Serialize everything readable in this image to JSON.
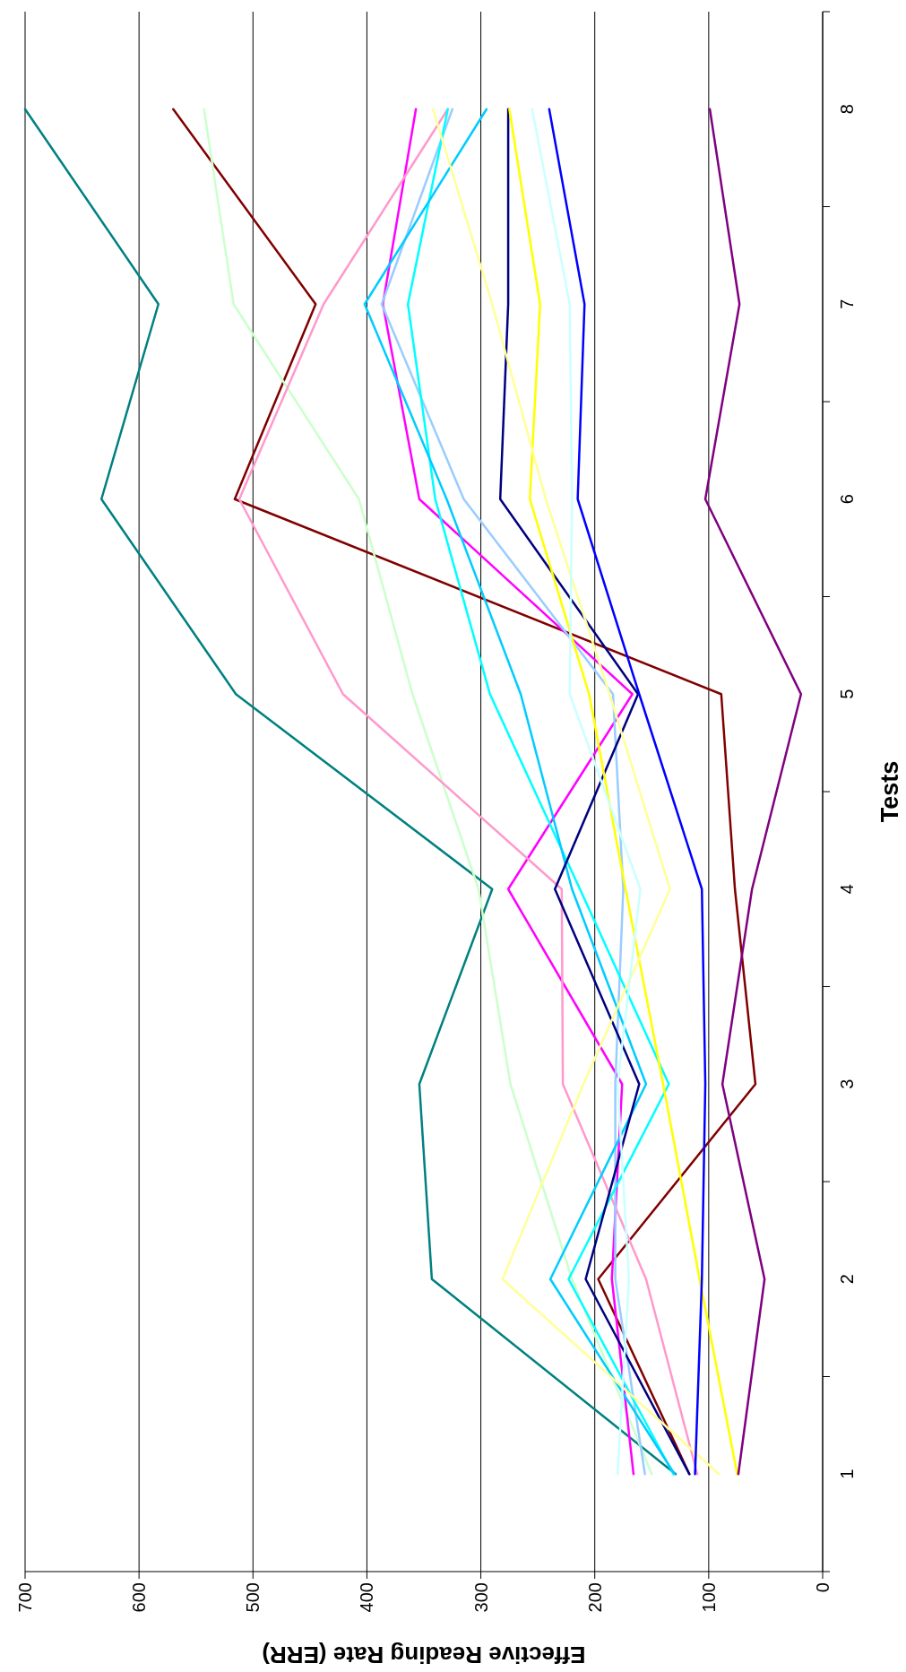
{
  "chart_data": {
    "type": "line",
    "orientation": "horizontal",
    "ylabel": "Tests",
    "xlabel": "Effective Reading Rate (ERR)",
    "categories": [
      "8",
      "7",
      "6",
      "5",
      "4",
      "3",
      "2",
      "1"
    ],
    "xlim": [
      700,
      0
    ],
    "xticks": [
      700,
      600,
      500,
      400,
      300,
      200,
      100,
      0
    ],
    "grid": "x",
    "series": [
      {
        "color": "#008080",
        "values": [
          700,
          583,
          633,
          515,
          290,
          354,
          343,
          129
        ]
      },
      {
        "color": "#800000",
        "values": [
          570,
          445,
          516,
          89,
          77,
          59,
          197,
          117
        ]
      },
      {
        "color": "#ccffcc",
        "values": [
          543,
          517,
          407,
          360,
          302,
          274,
          220,
          150
        ]
      },
      {
        "color": "#ff00ff",
        "values": [
          357,
          386,
          354,
          167,
          276,
          176,
          185,
          166
        ]
      },
      {
        "color": "#ff99cc",
        "values": [
          329,
          438,
          512,
          421,
          229,
          228,
          155,
          110
        ]
      },
      {
        "color": "#99ccff",
        "values": [
          325,
          387,
          315,
          184,
          175,
          182,
          182,
          156
        ]
      },
      {
        "color": "#00ffff",
        "values": [
          329,
          364,
          340,
          292,
          213,
          135,
          223,
          131
        ]
      },
      {
        "color": "#00ccff",
        "values": [
          295,
          402,
          330,
          265,
          220,
          155,
          239,
          130
        ]
      },
      {
        "color": "#000080",
        "values": [
          276,
          276,
          283,
          162,
          235,
          161,
          208,
          117
        ]
      },
      {
        "color": "#ffff00",
        "values": [
          275,
          248,
          257,
          205,
          173,
          140,
          108,
          75
        ]
      },
      {
        "color": "#ffff99",
        "values": [
          342,
          290,
          243,
          187,
          134,
          210,
          281,
          91
        ]
      },
      {
        "color": "#0000ff",
        "values": [
          240,
          209,
          215,
          161,
          106,
          103,
          106,
          112
        ]
      },
      {
        "color": "#ccffff",
        "values": [
          255,
          222,
          220,
          222,
          160,
          180,
          170,
          180
        ]
      },
      {
        "color": "#800080",
        "values": [
          99,
          73,
          103,
          19,
          62,
          88,
          51,
          74
        ]
      }
    ]
  }
}
